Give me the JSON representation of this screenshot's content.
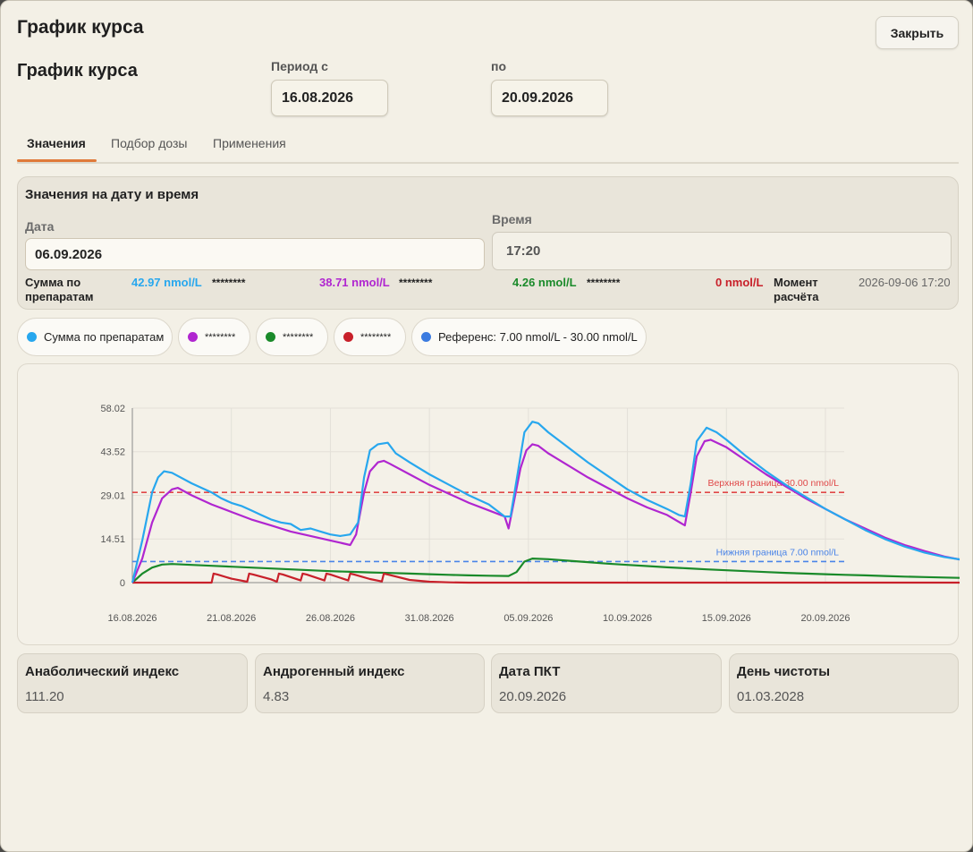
{
  "window": {
    "title": "График курса",
    "close_label": "Закрыть"
  },
  "header": {
    "title": "График курса",
    "period_from_label": "Период с",
    "period_from_value": "16.08.2026",
    "period_to_label": "по",
    "period_to_value": "20.09.2026"
  },
  "tabs": [
    {
      "label": "Значения",
      "active": true
    },
    {
      "label": "Подбор дозы",
      "active": false
    },
    {
      "label": "Применения",
      "active": false
    }
  ],
  "values_panel": {
    "title": "Значения на дату и время",
    "date_label": "Дата",
    "date_value": "06.09.2026",
    "time_label": "Время",
    "time_value": "17:20",
    "sum_label": "Сумма по препаратам",
    "sum_value": "42.97 nmol/L",
    "items": [
      {
        "name": "********",
        "value": "38.71 nmol/L",
        "color": "#b026d0"
      },
      {
        "name": "********",
        "value": "4.26 nmol/L",
        "color": "#1a8a2a"
      },
      {
        "name": "********",
        "value": "0 nmol/L",
        "color": "#c8202a"
      }
    ],
    "moment_label": "Момент расчёта",
    "moment_value": "2026-09-06 17:20"
  },
  "legend": [
    {
      "label": "Сумма по препаратам",
      "color": "#27a7ee"
    },
    {
      "label": "********",
      "color": "#b026d0"
    },
    {
      "label": "********",
      "color": "#1a8a2a"
    },
    {
      "label": "********",
      "color": "#c8202a"
    },
    {
      "label": "Референс: 7.00 nmol/L - 30.00 nmol/L",
      "color": "#3b7be0"
    }
  ],
  "chart_data": {
    "type": "line",
    "x_unit": "days",
    "x_start": "16.08.2026",
    "x_ticks": [
      "16.08.2026",
      "21.08.2026",
      "26.08.2026",
      "31.08.2026",
      "05.09.2026",
      "10.09.2026",
      "15.09.2026",
      "20.09.2026"
    ],
    "y_ticks": [
      "0",
      "14.51",
      "29.01",
      "43.52",
      "58.02"
    ],
    "ylim": [
      0,
      58.02
    ],
    "reference_lines": [
      {
        "label": "Верхняя граница 30.00 nmol/L",
        "value": 30.0,
        "color": "#e04848"
      },
      {
        "label": "Нижняя граница 7.00 nmol/L",
        "value": 7.0,
        "color": "#4a84e8"
      }
    ],
    "series": [
      {
        "name": "Сумма по препаратам",
        "color": "#27a7ee",
        "points": [
          [
            0,
            0
          ],
          [
            0.5,
            14
          ],
          [
            1,
            30
          ],
          [
            1.3,
            35
          ],
          [
            1.6,
            37
          ],
          [
            2,
            36.5
          ],
          [
            3,
            33
          ],
          [
            4,
            30
          ],
          [
            4.5,
            28
          ],
          [
            5,
            26.5
          ],
          [
            5.5,
            25.5
          ],
          [
            6,
            24
          ],
          [
            6.5,
            22.5
          ],
          [
            7,
            21
          ],
          [
            7.5,
            20
          ],
          [
            8,
            19.5
          ],
          [
            8.5,
            17.5
          ],
          [
            9,
            18
          ],
          [
            9.5,
            17
          ],
          [
            10,
            16
          ],
          [
            10.5,
            15.5
          ],
          [
            11,
            16
          ],
          [
            11.4,
            20
          ],
          [
            11.7,
            35
          ],
          [
            12,
            44
          ],
          [
            12.4,
            46
          ],
          [
            12.9,
            46.5
          ],
          [
            13.3,
            43
          ],
          [
            14,
            40
          ],
          [
            15,
            36
          ],
          [
            16,
            32.5
          ],
          [
            17,
            29
          ],
          [
            18,
            26
          ],
          [
            18.8,
            22
          ],
          [
            19.1,
            22
          ],
          [
            19.5,
            38
          ],
          [
            19.8,
            50
          ],
          [
            20.2,
            53.5
          ],
          [
            20.5,
            53
          ],
          [
            21,
            50
          ],
          [
            22,
            45
          ],
          [
            23,
            40
          ],
          [
            24,
            35.5
          ],
          [
            25,
            31
          ],
          [
            26,
            27.5
          ],
          [
            27,
            24.5
          ],
          [
            27.6,
            22.5
          ],
          [
            27.9,
            22
          ],
          [
            28.2,
            33
          ],
          [
            28.5,
            47
          ],
          [
            29,
            51.5
          ],
          [
            29.5,
            50
          ],
          [
            30,
            47.5
          ],
          [
            31,
            42
          ],
          [
            32,
            37
          ],
          [
            33,
            32.5
          ],
          [
            34,
            28.5
          ],
          [
            35,
            24.5
          ],
          [
            36,
            21
          ],
          [
            37,
            17.5
          ],
          [
            38,
            14.5
          ],
          [
            39,
            12
          ],
          [
            40,
            10
          ],
          [
            41,
            8.5
          ],
          [
            42,
            7.5
          ],
          [
            43,
            7
          ],
          [
            43.5,
            6.6
          ]
        ]
      },
      {
        "name": "********",
        "color": "#b026d0",
        "points": [
          [
            0,
            0
          ],
          [
            0.5,
            8
          ],
          [
            1,
            20
          ],
          [
            1.5,
            28
          ],
          [
            2,
            31
          ],
          [
            2.3,
            31.5
          ],
          [
            3,
            29
          ],
          [
            4,
            26
          ],
          [
            5,
            23.5
          ],
          [
            6,
            21
          ],
          [
            7,
            19
          ],
          [
            8,
            17
          ],
          [
            9,
            15.5
          ],
          [
            10,
            14
          ],
          [
            11,
            12.5
          ],
          [
            11.3,
            16
          ],
          [
            11.7,
            30
          ],
          [
            12,
            37
          ],
          [
            12.4,
            40
          ],
          [
            12.7,
            40.5
          ],
          [
            13,
            39.5
          ],
          [
            14,
            36
          ],
          [
            15,
            32.5
          ],
          [
            16,
            29.5
          ],
          [
            17,
            26.5
          ],
          [
            18,
            24
          ],
          [
            18.8,
            22
          ],
          [
            19,
            18
          ],
          [
            19.3,
            28
          ],
          [
            19.6,
            38
          ],
          [
            19.9,
            44
          ],
          [
            20.2,
            46
          ],
          [
            20.5,
            45.5
          ],
          [
            21,
            43
          ],
          [
            22,
            39
          ],
          [
            23,
            35
          ],
          [
            24,
            31.5
          ],
          [
            25,
            28
          ],
          [
            26,
            25
          ],
          [
            27,
            22.5
          ],
          [
            27.9,
            19
          ],
          [
            28.2,
            30
          ],
          [
            28.5,
            42
          ],
          [
            28.9,
            47
          ],
          [
            29.2,
            47.5
          ],
          [
            30,
            45
          ],
          [
            31,
            40.5
          ],
          [
            32,
            36
          ],
          [
            33,
            32
          ],
          [
            34,
            28
          ],
          [
            35,
            24.5
          ],
          [
            36,
            21
          ],
          [
            37,
            18
          ],
          [
            38,
            15
          ],
          [
            39,
            12.5
          ],
          [
            40,
            10.5
          ],
          [
            41,
            8.7
          ],
          [
            42,
            7.4
          ],
          [
            43,
            6.4
          ],
          [
            43.5,
            6.0
          ]
        ]
      },
      {
        "name": "********",
        "color": "#1a8a2a",
        "points": [
          [
            0,
            0
          ],
          [
            0.5,
            3
          ],
          [
            1,
            5
          ],
          [
            1.5,
            6
          ],
          [
            2,
            6.2
          ],
          [
            3,
            5.9
          ],
          [
            4,
            5.6
          ],
          [
            5,
            5.3
          ],
          [
            6,
            5.0
          ],
          [
            7,
            4.7
          ],
          [
            8,
            4.4
          ],
          [
            9,
            4.1
          ],
          [
            10,
            3.8
          ],
          [
            11,
            3.6
          ],
          [
            12,
            3.4
          ],
          [
            13,
            3.2
          ],
          [
            14,
            3.0
          ],
          [
            15,
            2.8
          ],
          [
            16,
            2.6
          ],
          [
            17,
            2.4
          ],
          [
            18,
            2.3
          ],
          [
            19,
            2.2
          ],
          [
            19.4,
            3.5
          ],
          [
            19.8,
            7
          ],
          [
            20.2,
            8
          ],
          [
            21,
            7.8
          ],
          [
            22,
            7.3
          ],
          [
            23,
            6.8
          ],
          [
            24,
            6.3
          ],
          [
            25,
            5.9
          ],
          [
            26,
            5.5
          ],
          [
            27,
            5.1
          ],
          [
            28,
            4.75
          ],
          [
            29,
            4.4
          ],
          [
            30,
            4.1
          ],
          [
            31,
            3.8
          ],
          [
            32,
            3.5
          ],
          [
            33,
            3.25
          ],
          [
            34,
            3.0
          ],
          [
            35,
            2.8
          ],
          [
            36,
            2.6
          ],
          [
            37,
            2.4
          ],
          [
            38,
            2.2
          ],
          [
            39,
            2.0
          ],
          [
            40,
            1.85
          ],
          [
            41,
            1.7
          ],
          [
            42,
            1.55
          ],
          [
            43,
            1.4
          ],
          [
            43.5,
            1.35
          ]
        ]
      },
      {
        "name": "********",
        "color": "#c8202a",
        "points": [
          [
            0,
            0
          ],
          [
            4,
            0
          ],
          [
            4.1,
            3
          ],
          [
            4.3,
            2.7
          ],
          [
            5,
            1.3
          ],
          [
            5.8,
            0.3
          ],
          [
            5.9,
            3
          ],
          [
            6.1,
            2.7
          ],
          [
            7,
            1.1
          ],
          [
            7.3,
            0.3
          ],
          [
            7.4,
            3
          ],
          [
            7.6,
            2.7
          ],
          [
            8.5,
            0.7
          ],
          [
            8.6,
            3
          ],
          [
            8.8,
            2.7
          ],
          [
            9.7,
            0.7
          ],
          [
            9.8,
            3
          ],
          [
            10,
            2.7
          ],
          [
            10.9,
            0.7
          ],
          [
            11,
            3
          ],
          [
            11.2,
            2.7
          ],
          [
            12,
            1.2
          ],
          [
            12.6,
            0.4
          ],
          [
            12.7,
            3
          ],
          [
            12.9,
            2.7
          ],
          [
            14,
            0.9
          ],
          [
            15,
            0.3
          ],
          [
            16,
            0.1
          ],
          [
            17,
            0
          ],
          [
            43.5,
            0
          ]
        ]
      }
    ]
  },
  "stats": [
    {
      "title": "Анаболический индекс",
      "value": "111.20"
    },
    {
      "title": "Андрогенный индекс",
      "value": "4.83"
    },
    {
      "title": "Дата ПКТ",
      "value": "20.09.2026"
    },
    {
      "title": "День чистоты",
      "value": "01.03.2028"
    }
  ]
}
